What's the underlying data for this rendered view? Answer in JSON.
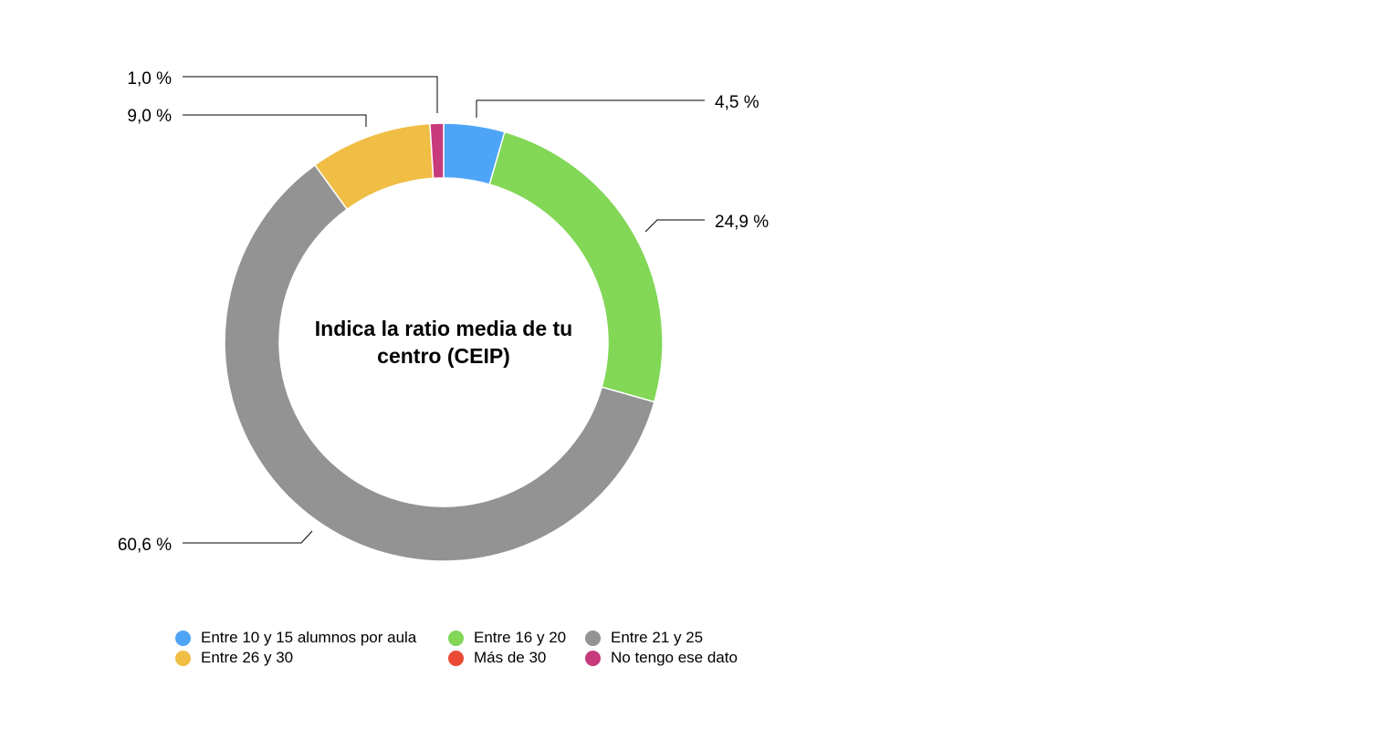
{
  "chart_data": {
    "type": "pie",
    "variant": "donut",
    "title": "Indica la ratio media de tu centro (CEIP)",
    "slices": [
      {
        "label": "Entre 10 y 15 alumnos por aula",
        "value": 4.5,
        "display": "4,5 %",
        "color": "#4ea4f6"
      },
      {
        "label": "Entre 16 y 20",
        "value": 24.9,
        "display": "24,9 %",
        "color": "#82d757"
      },
      {
        "label": "Entre 21 y 25",
        "value": 60.6,
        "display": "60,6 %",
        "color": "#939393"
      },
      {
        "label": "Entre 26 y 30",
        "value": 9.0,
        "display": "9,0 %",
        "color": "#f0bd45"
      },
      {
        "label": "Más de 30",
        "value": 0,
        "display": "",
        "color": "#eb4a35"
      },
      {
        "label": "No tengo ese dato",
        "value": 1.0,
        "display": "1,0 %",
        "color": "#c73a7c"
      }
    ],
    "legend_position": "bottom"
  },
  "title_lines": [
    "Indica la ratio media de tu",
    "centro (CEIP)"
  ]
}
